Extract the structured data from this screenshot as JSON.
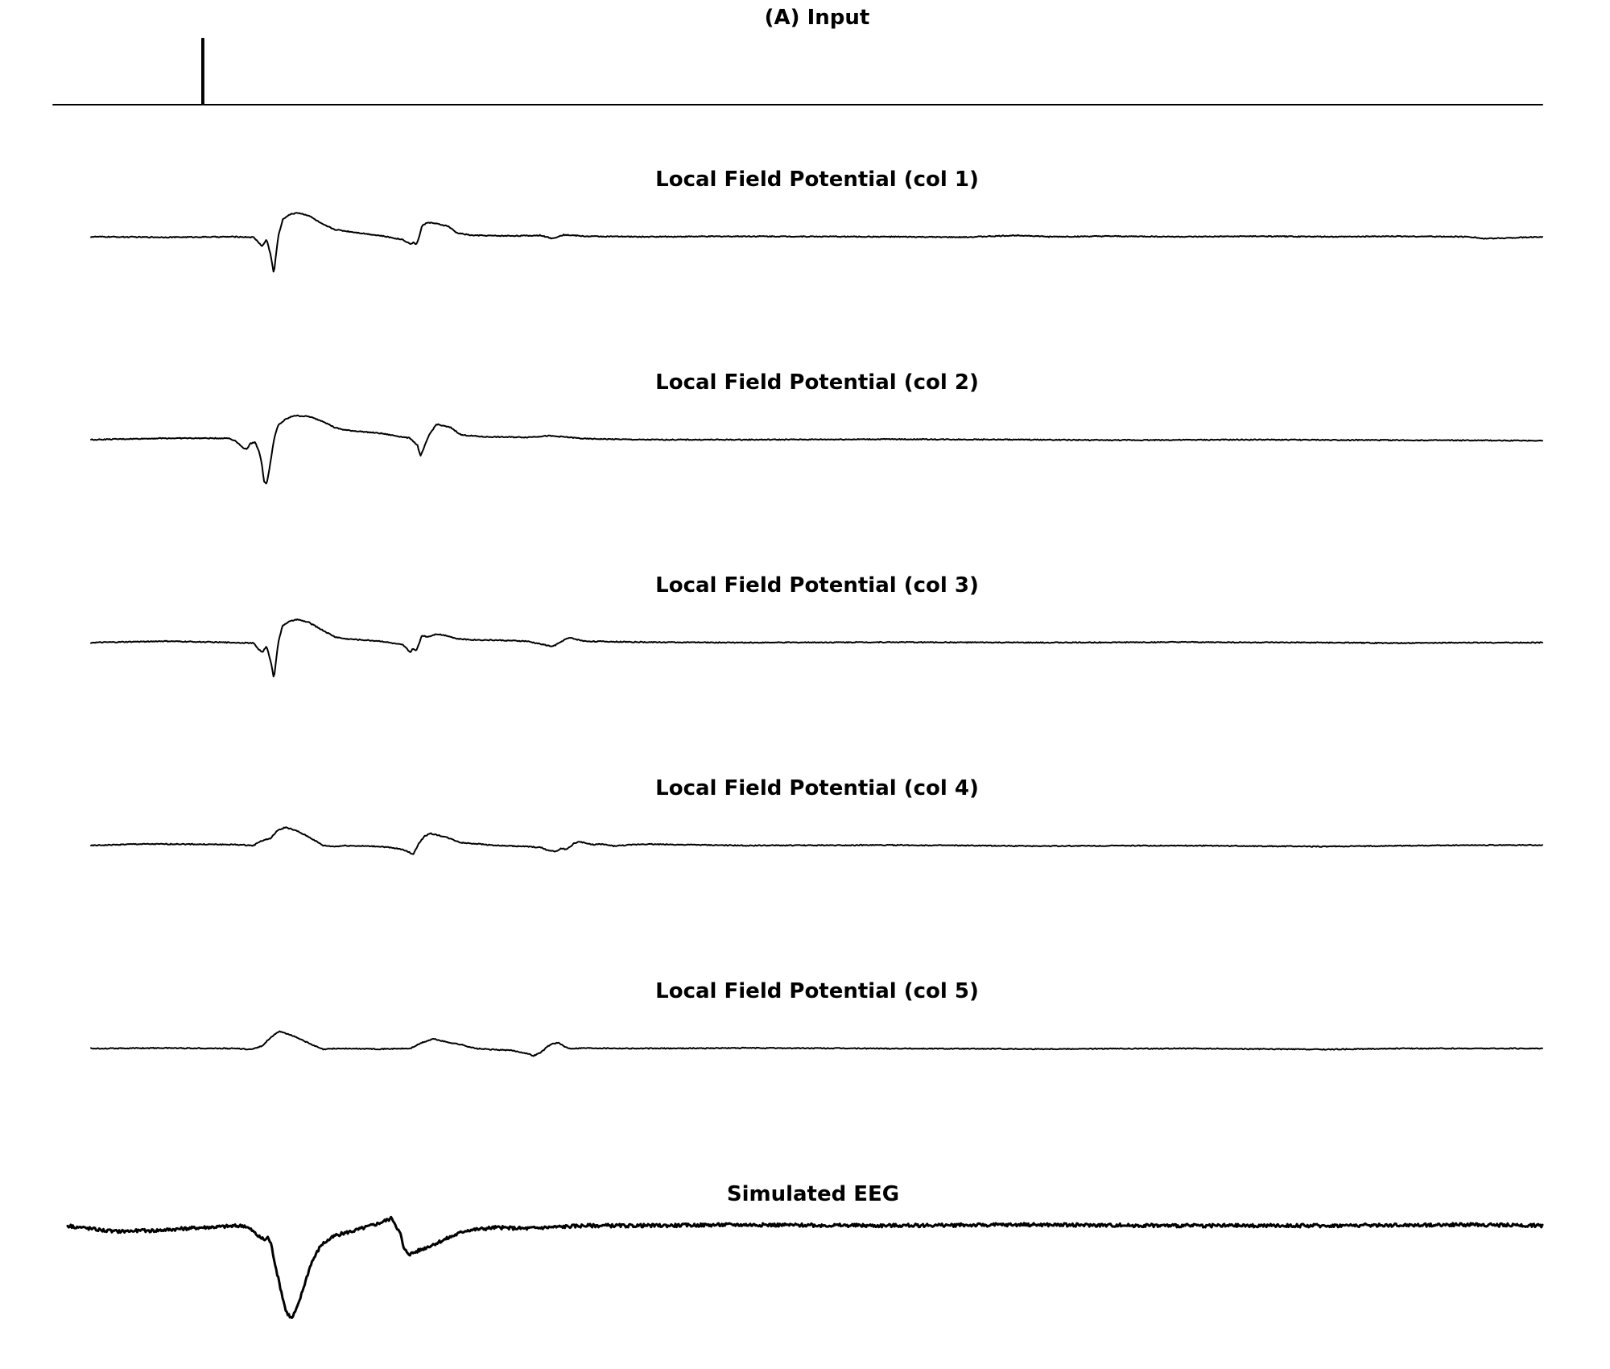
{
  "figure_label": "(A)",
  "chart_data": [
    {
      "type": "line",
      "title": "(A) Input",
      "x_range": [
        0,
        1000
      ],
      "y_range": [
        0,
        1
      ],
      "series": [
        {
          "values_description": "stimulus pulse",
          "x": [
            0,
            100,
            100,
            101,
            101,
            1000
          ],
          "y": [
            0,
            0,
            1,
            1,
            0,
            0
          ]
        }
      ]
    },
    {
      "type": "line",
      "title": "Local Field Potential (col 1)",
      "x_range": [
        0,
        1000
      ],
      "y_range": [
        -1,
        1
      ],
      "series": [
        {
          "x": [
            0,
            50,
            100,
            112,
            115,
            118,
            121,
            124,
            126,
            127,
            129,
            132,
            136,
            142,
            150,
            160,
            168,
            175,
            185,
            200,
            215,
            220,
            222,
            224,
            226,
            228,
            232,
            236,
            246,
            252,
            262,
            280,
            300,
            310,
            318,
            322,
            326,
            332,
            340,
            380,
            450,
            550,
            600,
            640,
            660,
            700,
            760,
            800,
            860,
            900,
            950,
            960,
            980,
            1000
          ],
          "y": [
            0.0,
            -0.01,
            0.0,
            -0.01,
            -0.1,
            -0.2,
            -0.05,
            -0.4,
            -0.78,
            -0.5,
            0.0,
            0.35,
            0.45,
            0.5,
            0.44,
            0.25,
            0.15,
            0.12,
            0.08,
            0.02,
            -0.06,
            -0.15,
            -0.12,
            -0.16,
            -0.02,
            0.22,
            0.3,
            0.28,
            0.22,
            0.08,
            0.03,
            0.02,
            0.02,
            0.03,
            -0.04,
            0.01,
            0.04,
            0.03,
            0.01,
            0.0,
            0.01,
            0.0,
            -0.01,
            0.03,
            0.0,
            0.01,
            0.0,
            0.01,
            0.0,
            0.01,
            0.0,
            -0.04,
            -0.02,
            0.0
          ]
        }
      ]
    },
    {
      "type": "line",
      "title": "Local Field Potential (col 2)",
      "x_range": [
        0,
        1000
      ],
      "y_range": [
        -1,
        1
      ],
      "series": [
        {
          "x": [
            0,
            50,
            95,
            100,
            104,
            107,
            110,
            113,
            116,
            118,
            119,
            121,
            123,
            126,
            129,
            134,
            140,
            150,
            160,
            168,
            175,
            200,
            220,
            225,
            227,
            229,
            233,
            238,
            248,
            255,
            270,
            300,
            315,
            325,
            340,
            380,
            450,
            550,
            650,
            700,
            800,
            900,
            1000
          ],
          "y": [
            0.0,
            0.03,
            0.03,
            -0.03,
            -0.15,
            -0.2,
            -0.08,
            -0.05,
            -0.25,
            -0.55,
            -0.85,
            -0.92,
            -0.6,
            0.0,
            0.3,
            0.42,
            0.5,
            0.48,
            0.38,
            0.25,
            0.2,
            0.13,
            0.03,
            -0.12,
            -0.35,
            -0.2,
            0.1,
            0.32,
            0.25,
            0.1,
            0.06,
            0.05,
            0.08,
            0.06,
            0.02,
            0.0,
            0.0,
            0.01,
            0.0,
            -0.01,
            0.0,
            -0.01,
            -0.02
          ]
        }
      ]
    },
    {
      "type": "line",
      "title": "Local Field Potential (col 3)",
      "x_range": [
        0,
        1000
      ],
      "y_range": [
        -1,
        1
      ],
      "series": [
        {
          "x": [
            0,
            50,
            100,
            112,
            115,
            118,
            121,
            124,
            126,
            127,
            129,
            132,
            136,
            142,
            150,
            160,
            168,
            175,
            200,
            215,
            220,
            222,
            224,
            226,
            228,
            232,
            238,
            246,
            252,
            262,
            280,
            300,
            310,
            318,
            322,
            326,
            330,
            340,
            380,
            450,
            550,
            650,
            750,
            850,
            900,
            950,
            1000
          ],
          "y": [
            0.0,
            0.03,
            0.0,
            -0.01,
            -0.12,
            -0.2,
            -0.08,
            -0.4,
            -0.75,
            -0.5,
            0.0,
            0.35,
            0.43,
            0.48,
            0.42,
            0.25,
            0.12,
            0.08,
            0.03,
            -0.05,
            -0.2,
            -0.12,
            -0.18,
            -0.02,
            0.15,
            0.12,
            0.18,
            0.14,
            0.08,
            0.06,
            0.05,
            0.03,
            -0.03,
            -0.08,
            -0.02,
            0.06,
            0.1,
            0.03,
            0.01,
            0.0,
            0.01,
            0.0,
            0.01,
            0.0,
            -0.01,
            0.0,
            0.0
          ]
        }
      ]
    },
    {
      "type": "line",
      "title": "Local Field Potential (col 4)",
      "x_range": [
        0,
        1000
      ],
      "y_range": [
        -1,
        1
      ],
      "series": [
        {
          "x": [
            0,
            30,
            60,
            100,
            112,
            116,
            120,
            124,
            128,
            134,
            142,
            150,
            160,
            168,
            175,
            200,
            215,
            222,
            226,
            230,
            234,
            244,
            255,
            265,
            280,
            300,
            310,
            315,
            320,
            324,
            328,
            333,
            337,
            345,
            352,
            360,
            380,
            450,
            550,
            650,
            750,
            850,
            950,
            1000
          ],
          "y": [
            0.0,
            0.03,
            0.03,
            0.02,
            0.0,
            0.08,
            0.12,
            0.15,
            0.3,
            0.38,
            0.3,
            0.18,
            0.0,
            -0.02,
            0.0,
            -0.02,
            -0.08,
            -0.18,
            0.05,
            0.2,
            0.25,
            0.18,
            0.06,
            0.04,
            0.0,
            -0.02,
            -0.04,
            -0.1,
            -0.12,
            -0.06,
            -0.08,
            0.05,
            0.08,
            0.02,
            0.03,
            -0.01,
            0.03,
            0.0,
            0.01,
            -0.01,
            0.0,
            -0.02,
            0.01,
            0.01
          ]
        }
      ]
    },
    {
      "type": "line",
      "title": "Local Field Potential (col 5)",
      "x_range": [
        0,
        1000
      ],
      "y_range": [
        -1,
        1
      ],
      "series": [
        {
          "x": [
            0,
            50,
            100,
            110,
            114,
            118,
            122,
            126,
            130,
            136,
            144,
            152,
            160,
            168,
            200,
            220,
            228,
            236,
            244,
            255,
            265,
            275,
            290,
            300,
            305,
            310,
            315,
            318,
            322,
            326,
            330,
            340,
            380,
            450,
            550,
            650,
            750,
            850,
            900,
            1000
          ],
          "y": [
            0.0,
            0.01,
            0.0,
            -0.02,
            0.02,
            0.05,
            0.18,
            0.28,
            0.35,
            0.3,
            0.2,
            0.08,
            -0.02,
            0.0,
            -0.01,
            0.0,
            0.12,
            0.2,
            0.14,
            0.08,
            0.0,
            -0.02,
            -0.04,
            -0.1,
            -0.15,
            -0.08,
            0.05,
            0.1,
            0.12,
            0.04,
            0.0,
            0.01,
            0.0,
            0.01,
            0.0,
            -0.01,
            0.0,
            -0.02,
            0.0,
            0.0
          ]
        }
      ]
    },
    {
      "type": "line",
      "title": "Simulated EEG",
      "x_range": [
        0,
        1000
      ],
      "y_range": [
        -1,
        1
      ],
      "series": [
        {
          "x": [
            0,
            30,
            60,
            90,
            120,
            125,
            130,
            134,
            136,
            138,
            142,
            148,
            152,
            156,
            160,
            165,
            172,
            182,
            195,
            210,
            215,
            220,
            226,
            228,
            232,
            240,
            255,
            270,
            290,
            310,
            350,
            400,
            450,
            550,
            650,
            750,
            850,
            950,
            1000
          ],
          "y": [
            0.0,
            -0.06,
            -0.05,
            -0.02,
            0.0,
            -0.05,
            -0.12,
            -0.15,
            -0.12,
            -0.2,
            -0.5,
            -0.9,
            -0.98,
            -0.85,
            -0.65,
            -0.4,
            -0.2,
            -0.1,
            -0.05,
            0.02,
            0.05,
            0.08,
            -0.1,
            -0.25,
            -0.3,
            -0.25,
            -0.15,
            -0.05,
            -0.02,
            -0.03,
            0.0,
            0.0,
            0.01,
            0.0,
            0.01,
            0.0,
            0.0,
            0.01,
            0.0
          ]
        }
      ]
    }
  ]
}
